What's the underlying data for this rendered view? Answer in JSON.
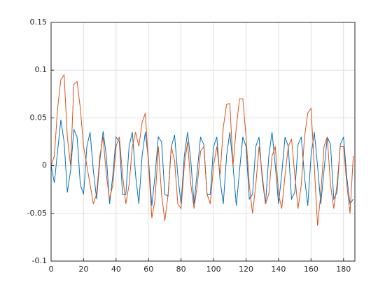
{
  "chart_data": {
    "type": "line",
    "x": [
      0,
      2,
      4,
      6,
      8,
      10,
      12,
      14,
      16,
      18,
      20,
      22,
      24,
      26,
      28,
      30,
      32,
      34,
      36,
      38,
      40,
      42,
      44,
      46,
      48,
      50,
      52,
      54,
      56,
      58,
      60,
      62,
      64,
      66,
      68,
      70,
      72,
      74,
      76,
      78,
      80,
      82,
      84,
      86,
      88,
      90,
      92,
      94,
      96,
      98,
      100,
      102,
      104,
      106,
      108,
      110,
      112,
      114,
      116,
      118,
      120,
      122,
      124,
      126,
      128,
      130,
      132,
      134,
      136,
      138,
      140,
      142,
      144,
      146,
      148,
      150,
      152,
      154,
      156,
      158,
      160,
      162,
      164,
      166,
      168,
      170,
      172,
      174,
      176,
      178,
      180,
      182,
      184,
      186
    ],
    "series": [
      {
        "color": "#0072bd",
        "values": [
          0,
          -0.018,
          0.015,
          0.048,
          0.025,
          -0.028,
          -0.005,
          0.038,
          0.03,
          -0.02,
          -0.03,
          0.02,
          0.035,
          -0.005,
          -0.035,
          0.005,
          0.036,
          0.01,
          -0.04,
          -0.01,
          0.03,
          0.025,
          -0.03,
          -0.03,
          0.02,
          0.035,
          -0.01,
          -0.04,
          0.01,
          0.035,
          0.005,
          -0.042,
          -0.01,
          0.03,
          0.025,
          -0.03,
          -0.032,
          0.02,
          0.032,
          -0.01,
          -0.04,
          0.01,
          0.035,
          0.005,
          -0.04,
          -0.005,
          0.03,
          0.022,
          -0.03,
          -0.03,
          0.02,
          0.03,
          -0.015,
          -0.04,
          0.01,
          0.035,
          0.0,
          -0.042,
          -0.005,
          0.03,
          0.02,
          -0.035,
          -0.03,
          0.02,
          0.03,
          -0.015,
          -0.04,
          0.01,
          0.035,
          0.0,
          -0.04,
          -0.008,
          0.03,
          0.02,
          -0.035,
          -0.028,
          0.022,
          0.03,
          -0.012,
          -0.042,
          0.01,
          0.035,
          0.0,
          -0.04,
          -0.005,
          0.03,
          0.022,
          -0.035,
          -0.028,
          0.022,
          0.03,
          -0.012,
          -0.04,
          -0.035
        ]
      },
      {
        "color": "#d95319",
        "values": [
          0,
          0.01,
          0.06,
          0.09,
          0.095,
          0.03,
          0.0,
          0.085,
          0.088,
          0.06,
          0.02,
          0.0,
          -0.02,
          -0.04,
          -0.03,
          0.01,
          0.03,
          -0.01,
          -0.035,
          -0.02,
          0.02,
          0.03,
          -0.01,
          -0.04,
          -0.02,
          0.02,
          0.035,
          0.02,
          0.045,
          0.055,
          0.0,
          -0.055,
          -0.035,
          0.02,
          -0.03,
          -0.058,
          -0.03,
          0.02,
          0.005,
          -0.04,
          -0.045,
          0.0,
          0.025,
          -0.02,
          -0.045,
          -0.02,
          0.015,
          0.02,
          -0.03,
          -0.04,
          0.0,
          0.02,
          -0.01,
          0.04,
          0.064,
          0.065,
          0.0,
          0.04,
          0.07,
          0.07,
          0.03,
          -0.02,
          -0.05,
          -0.02,
          0.02,
          -0.01,
          -0.04,
          -0.03,
          0.01,
          0.02,
          -0.03,
          -0.045,
          -0.01,
          0.02,
          0.028,
          -0.01,
          -0.045,
          -0.02,
          0.03,
          0.055,
          0.06,
          0.0,
          -0.063,
          -0.03,
          0.02,
          0.03,
          -0.02,
          -0.045,
          -0.02,
          0.02,
          0.02,
          -0.02,
          -0.05,
          0.01
        ]
      }
    ],
    "xlim": [
      0,
      187
    ],
    "ylim": [
      -0.1,
      0.15
    ],
    "xticks": [
      0,
      20,
      40,
      60,
      80,
      100,
      120,
      140,
      160,
      180
    ],
    "yticks": [
      -0.1,
      -0.05,
      0,
      0.05,
      0.1,
      0.15
    ],
    "grid": true
  }
}
